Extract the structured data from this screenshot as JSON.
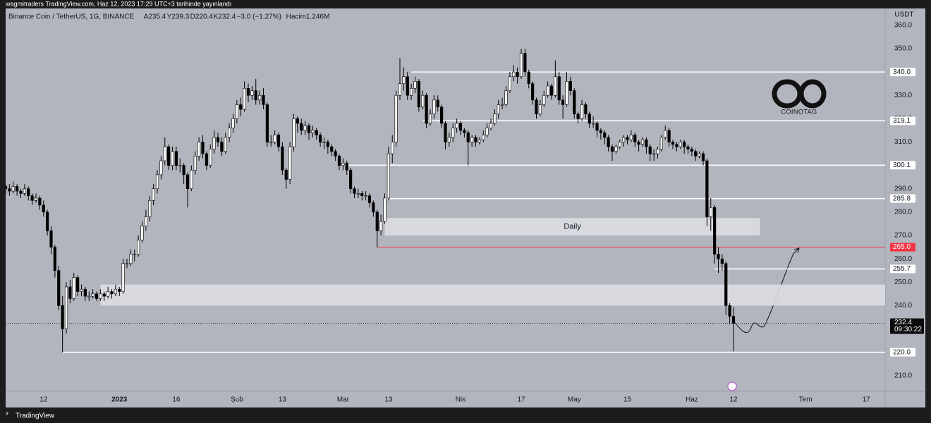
{
  "header": {
    "publisher": "wagmitraders TradingView.com, Haz 12, 2023 17:29 UTC+3 tarihinde yayınlandı"
  },
  "footer": {
    "brand": "TradingView"
  },
  "watermark": "COINOTAG",
  "chart_data": {
    "type": "candlestick",
    "symbol": "Binance Coin / TetherUS, 1G, BINANCE",
    "ohlc_labels": [
      "A235.4",
      "Y239.3",
      "D220.4",
      "K232.4"
    ],
    "change": "−3.0 (−1.27%)",
    "volume": "Hacim1.246M",
    "currency": "USDT",
    "up_color": "#ffffff",
    "down_color": "#000000",
    "candles": [
      [
        291,
        292,
        288,
        290
      ],
      [
        290,
        292,
        287,
        289
      ],
      [
        289,
        293,
        288,
        291
      ],
      [
        291,
        292,
        287,
        289
      ],
      [
        289,
        290,
        286,
        288
      ],
      [
        288,
        292,
        287,
        290
      ],
      [
        290,
        291,
        285,
        287
      ],
      [
        287,
        288,
        283,
        285
      ],
      [
        285,
        288,
        284,
        286
      ],
      [
        286,
        287,
        281,
        283
      ],
      [
        283,
        285,
        278,
        280
      ],
      [
        280,
        281,
        270,
        272
      ],
      [
        272,
        274,
        262,
        265
      ],
      [
        265,
        266,
        252,
        255
      ],
      [
        255,
        257,
        238,
        240
      ],
      [
        240,
        244,
        220,
        230
      ],
      [
        230,
        250,
        228,
        248
      ],
      [
        248,
        251,
        241,
        243
      ],
      [
        243,
        254,
        242,
        252
      ],
      [
        252,
        253,
        244,
        246
      ],
      [
        246,
        249,
        244,
        247
      ],
      [
        247,
        248,
        242,
        244
      ],
      [
        244,
        246,
        242,
        244
      ],
      [
        244,
        247,
        243,
        245
      ],
      [
        245,
        246,
        242,
        243
      ],
      [
        243,
        247,
        242,
        245
      ],
      [
        245,
        246,
        242,
        244
      ],
      [
        244,
        248,
        243,
        246
      ],
      [
        246,
        247,
        243,
        245
      ],
      [
        245,
        249,
        244,
        247
      ],
      [
        247,
        248,
        244,
        246
      ],
      [
        246,
        260,
        245,
        258
      ],
      [
        258,
        260,
        256,
        258
      ],
      [
        258,
        264,
        257,
        262
      ],
      [
        262,
        264,
        259,
        262
      ],
      [
        262,
        270,
        261,
        268
      ],
      [
        268,
        276,
        267,
        274
      ],
      [
        274,
        281,
        272,
        278
      ],
      [
        278,
        287,
        276,
        285
      ],
      [
        285,
        292,
        283,
        290
      ],
      [
        290,
        298,
        288,
        296
      ],
      [
        296,
        304,
        294,
        302
      ],
      [
        302,
        312,
        300,
        308
      ],
      [
        308,
        309,
        298,
        300
      ],
      [
        300,
        308,
        298,
        306
      ],
      [
        306,
        308,
        298,
        300
      ],
      [
        300,
        303,
        297,
        300
      ],
      [
        300,
        301,
        292,
        296
      ],
      [
        296,
        297,
        282,
        290
      ],
      [
        290,
        300,
        289,
        298
      ],
      [
        298,
        306,
        296,
        304
      ],
      [
        304,
        312,
        302,
        310
      ],
      [
        310,
        313,
        303,
        305
      ],
      [
        305,
        306,
        298,
        300
      ],
      [
        300,
        309,
        299,
        307
      ],
      [
        307,
        315,
        305,
        312
      ],
      [
        312,
        314,
        308,
        310
      ],
      [
        310,
        312,
        304,
        306
      ],
      [
        306,
        314,
        305,
        312
      ],
      [
        312,
        318,
        310,
        316
      ],
      [
        316,
        322,
        314,
        320
      ],
      [
        320,
        328,
        318,
        326
      ],
      [
        326,
        329,
        321,
        324
      ],
      [
        324,
        336,
        323,
        333
      ],
      [
        333,
        335,
        327,
        330
      ],
      [
        330,
        334,
        328,
        332
      ],
      [
        332,
        337,
        326,
        328
      ],
      [
        328,
        332,
        326,
        330
      ],
      [
        330,
        333,
        324,
        326
      ],
      [
        326,
        327,
        308,
        310
      ],
      [
        310,
        313,
        308,
        310
      ],
      [
        310,
        315,
        309,
        313
      ],
      [
        313,
        314,
        306,
        308
      ],
      [
        308,
        310,
        296,
        298
      ],
      [
        298,
        299,
        290,
        294
      ],
      [
        294,
        310,
        292,
        308
      ],
      [
        308,
        322,
        306,
        320
      ],
      [
        320,
        321,
        314,
        318
      ],
      [
        318,
        320,
        313,
        315
      ],
      [
        315,
        319,
        313,
        317
      ],
      [
        317,
        318,
        311,
        314
      ],
      [
        314,
        317,
        312,
        315
      ],
      [
        315,
        316,
        311,
        313
      ],
      [
        313,
        314,
        308,
        310
      ],
      [
        310,
        312,
        307,
        310
      ],
      [
        310,
        311,
        305,
        308
      ],
      [
        308,
        309,
        304,
        306
      ],
      [
        306,
        307,
        302,
        304
      ],
      [
        304,
        305,
        298,
        300
      ],
      [
        300,
        303,
        298,
        301
      ],
      [
        301,
        302,
        296,
        298
      ],
      [
        298,
        299,
        288,
        290
      ],
      [
        290,
        291,
        286,
        288
      ],
      [
        288,
        290,
        286,
        288
      ],
      [
        288,
        289,
        285,
        287
      ],
      [
        287,
        289,
        285,
        287
      ],
      [
        287,
        288,
        282,
        284
      ],
      [
        284,
        285,
        278,
        280
      ],
      [
        280,
        281,
        265,
        272
      ],
      [
        272,
        279,
        270,
        276
      ],
      [
        276,
        288,
        275,
        286
      ],
      [
        286,
        308,
        285,
        305
      ],
      [
        305,
        313,
        301,
        310
      ],
      [
        310,
        332,
        308,
        330
      ],
      [
        330,
        346,
        328,
        335
      ],
      [
        335,
        342,
        332,
        338
      ],
      [
        338,
        340,
        328,
        330
      ],
      [
        330,
        335,
        328,
        333
      ],
      [
        333,
        338,
        331,
        336
      ],
      [
        336,
        337,
        323,
        325
      ],
      [
        325,
        332,
        324,
        330
      ],
      [
        330,
        331,
        316,
        318
      ],
      [
        318,
        324,
        317,
        322
      ],
      [
        322,
        330,
        320,
        328
      ],
      [
        328,
        330,
        323,
        325
      ],
      [
        325,
        326,
        316,
        318
      ],
      [
        318,
        319,
        307,
        310
      ],
      [
        310,
        314,
        308,
        312
      ],
      [
        312,
        318,
        310,
        316
      ],
      [
        316,
        320,
        314,
        318
      ],
      [
        318,
        319,
        313,
        315
      ],
      [
        315,
        316,
        312,
        314
      ],
      [
        314,
        315,
        300,
        310
      ],
      [
        310,
        313,
        308,
        312
      ],
      [
        312,
        313,
        308,
        310
      ],
      [
        310,
        312,
        309,
        311
      ],
      [
        311,
        315,
        310,
        313
      ],
      [
        313,
        318,
        312,
        316
      ],
      [
        316,
        320,
        315,
        318
      ],
      [
        318,
        324,
        317,
        322
      ],
      [
        322,
        328,
        320,
        326
      ],
      [
        326,
        329,
        324,
        326
      ],
      [
        326,
        334,
        325,
        332
      ],
      [
        332,
        340,
        331,
        338
      ],
      [
        338,
        343,
        336,
        340
      ],
      [
        340,
        342,
        335,
        338
      ],
      [
        338,
        350,
        337,
        348
      ],
      [
        348,
        350,
        338,
        340
      ],
      [
        340,
        341,
        333,
        335
      ],
      [
        335,
        336,
        326,
        328
      ],
      [
        328,
        329,
        320,
        322
      ],
      [
        322,
        328,
        321,
        326
      ],
      [
        326,
        332,
        325,
        330
      ],
      [
        330,
        336,
        329,
        334
      ],
      [
        334,
        335,
        328,
        330
      ],
      [
        330,
        345,
        329,
        338
      ],
      [
        338,
        340,
        326,
        328
      ],
      [
        328,
        330,
        320,
        326
      ],
      [
        326,
        340,
        325,
        336
      ],
      [
        336,
        338,
        330,
        332
      ],
      [
        332,
        333,
        320,
        322
      ],
      [
        322,
        323,
        318,
        320
      ],
      [
        320,
        328,
        319,
        326
      ],
      [
        326,
        327,
        320,
        322
      ],
      [
        322,
        323,
        316,
        318
      ],
      [
        318,
        321,
        316,
        318
      ],
      [
        318,
        319,
        312,
        315
      ],
      [
        315,
        316,
        311,
        314
      ],
      [
        314,
        315,
        309,
        312
      ],
      [
        312,
        313,
        306,
        308
      ],
      [
        308,
        309,
        302,
        306
      ],
      [
        306,
        309,
        305,
        308
      ],
      [
        308,
        311,
        307,
        310
      ],
      [
        310,
        313,
        308,
        312
      ],
      [
        312,
        313,
        309,
        311
      ],
      [
        311,
        315,
        310,
        313
      ],
      [
        313,
        314,
        308,
        310
      ],
      [
        310,
        311,
        306,
        309
      ],
      [
        309,
        312,
        308,
        311
      ],
      [
        311,
        312,
        305,
        308
      ],
      [
        308,
        309,
        302,
        305
      ],
      [
        305,
        307,
        302,
        305
      ],
      [
        305,
        308,
        303,
        307
      ],
      [
        307,
        313,
        306,
        312
      ],
      [
        312,
        317,
        311,
        315
      ],
      [
        315,
        316,
        308,
        310
      ],
      [
        310,
        311,
        307,
        309
      ],
      [
        309,
        310,
        306,
        308
      ],
      [
        308,
        311,
        307,
        310
      ],
      [
        310,
        311,
        305,
        308
      ],
      [
        308,
        309,
        305,
        307
      ],
      [
        307,
        308,
        304,
        306
      ],
      [
        306,
        307,
        302,
        304
      ],
      [
        304,
        306,
        303,
        305
      ],
      [
        305,
        306,
        300,
        302
      ],
      [
        302,
        303,
        274,
        278
      ],
      [
        278,
        286,
        272,
        282
      ],
      [
        282,
        283,
        258,
        262
      ],
      [
        262,
        265,
        254,
        260
      ],
      [
        260,
        262,
        255,
        258
      ],
      [
        258,
        259,
        236,
        240
      ],
      [
        240,
        241,
        232,
        235.4
      ],
      [
        235.4,
        239.3,
        220.4,
        232.4
      ]
    ],
    "xlim": [
      0,
      232
    ],
    "xticks": [
      {
        "value": 10,
        "label": "12"
      },
      {
        "value": 30,
        "label": "2023"
      },
      {
        "value": 45,
        "label": "16"
      },
      {
        "value": 61,
        "label": "Şub"
      },
      {
        "value": 73,
        "label": "13"
      },
      {
        "value": 89,
        "label": "Mar"
      },
      {
        "value": 101,
        "label": "13"
      },
      {
        "value": 120,
        "label": "Nis"
      },
      {
        "value": 136,
        "label": "17"
      },
      {
        "value": 150,
        "label": "May"
      },
      {
        "value": 164,
        "label": "15"
      },
      {
        "value": 181,
        "label": "Haz"
      },
      {
        "value": 192,
        "label": "12"
      },
      {
        "value": 211,
        "label": "Tem"
      },
      {
        "value": 227,
        "label": "17"
      }
    ],
    "ylim": [
      203.3,
      367.2
    ],
    "yticks": [
      {
        "value": 210,
        "label": "210.0"
      },
      {
        "value": 220,
        "label": "220.0"
      },
      {
        "value": 230,
        "label": "230.0"
      },
      {
        "value": 240,
        "label": "240.0"
      },
      {
        "value": 250,
        "label": "250.0"
      },
      {
        "value": 260,
        "label": "260.0"
      },
      {
        "value": 270,
        "label": "270.0"
      },
      {
        "value": 280,
        "label": "280.0"
      },
      {
        "value": 290,
        "label": "290.0"
      },
      {
        "value": 300,
        "label": "300.0"
      },
      {
        "value": 310,
        "label": "310.0"
      },
      {
        "value": 320,
        "label": "320.0"
      },
      {
        "value": 330,
        "label": "330.0"
      },
      {
        "value": 340,
        "label": "340.0"
      },
      {
        "value": 350,
        "label": "350.0"
      },
      {
        "value": 360,
        "label": "360.0"
      }
    ],
    "grid": false,
    "levels": [
      {
        "value": 340,
        "label": "340.0",
        "start": 107,
        "color": "#ffffff"
      },
      {
        "value": 319.1,
        "label": "319.1",
        "start": 110,
        "color": "#ffffff"
      },
      {
        "value": 300.1,
        "label": "300.1",
        "start": 90,
        "color": "#ffffff"
      },
      {
        "value": 285.8,
        "label": "285.8",
        "start": 100,
        "color": "#ffffff"
      },
      {
        "value": 265,
        "label": "265.0",
        "start": 98,
        "color": "#f23645"
      },
      {
        "value": 255.7,
        "label": "255.7",
        "start": 187,
        "color": "#ffffff"
      },
      {
        "value": 220,
        "label": "220.0",
        "start": 15,
        "color": "#ffffff"
      }
    ],
    "zones": [
      {
        "label": "Daily",
        "start": 100,
        "end": 199,
        "low": 270,
        "high": 277.5
      },
      {
        "start": 25,
        "end": 239,
        "low": 240,
        "high": 249
      }
    ],
    "last_price": {
      "value": 232.4,
      "label": "232.4",
      "countdown": "09:30:22"
    }
  }
}
